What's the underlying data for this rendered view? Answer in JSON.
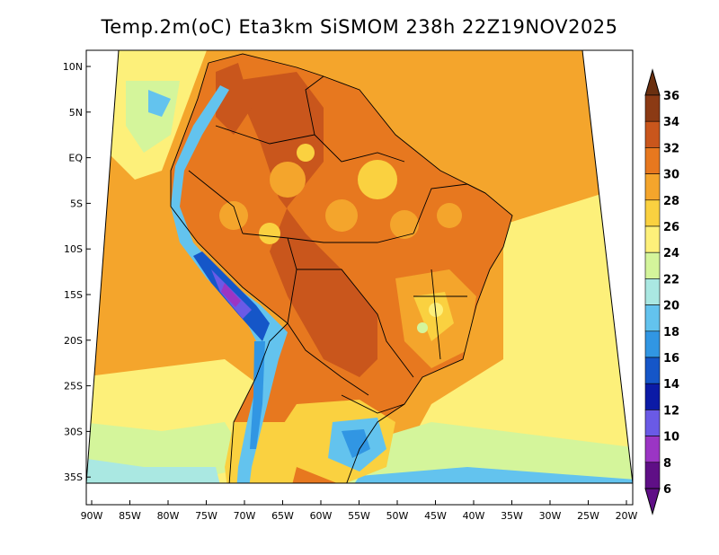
{
  "title": "Temp.2m(oC) Eta3km SiSMOM 238h 22Z19NOV2025",
  "colorbar": {
    "levels": [
      {
        "value": "36",
        "color": "#6b3010"
      },
      {
        "value": "34",
        "color": "#8b3a14"
      },
      {
        "value": "32",
        "color": "#c9561c"
      },
      {
        "value": "30",
        "color": "#e7781f"
      },
      {
        "value": "28",
        "color": "#f4a52c"
      },
      {
        "value": "26",
        "color": "#fad140"
      },
      {
        "value": "24",
        "color": "#fdf07a"
      },
      {
        "value": "22",
        "color": "#d4f59b"
      },
      {
        "value": "20",
        "color": "#aae8e2"
      },
      {
        "value": "18",
        "color": "#63c3ee"
      },
      {
        "value": "16",
        "color": "#3196e3"
      },
      {
        "value": "14",
        "color": "#1556c8"
      },
      {
        "value": "12",
        "color": "#0b1aa6"
      },
      {
        "value": "10",
        "color": "#6a5ae6"
      },
      {
        "value": "8",
        "color": "#9b35c4"
      },
      {
        "value": "6",
        "color": "#5f0f86"
      }
    ]
  },
  "axes": {
    "lon_ticks": [
      "90W",
      "85W",
      "80W",
      "75W",
      "70W",
      "65W",
      "60W",
      "55W",
      "50W",
      "45W",
      "40W",
      "35W",
      "30W",
      "25W",
      "20W"
    ],
    "lat_ticks": [
      "10N",
      "5N",
      "EQ",
      "5S",
      "10S",
      "15S",
      "20S",
      "25S",
      "30S",
      "35S"
    ]
  },
  "colors": {
    "ocean_warm": "#fad140",
    "ocean_mild": "#fdf07a",
    "ocean_cool": "#d4f59b",
    "land_hot": "#e7781f",
    "land_very_hot": "#c9561c",
    "andes_cold": "#1556c8"
  }
}
